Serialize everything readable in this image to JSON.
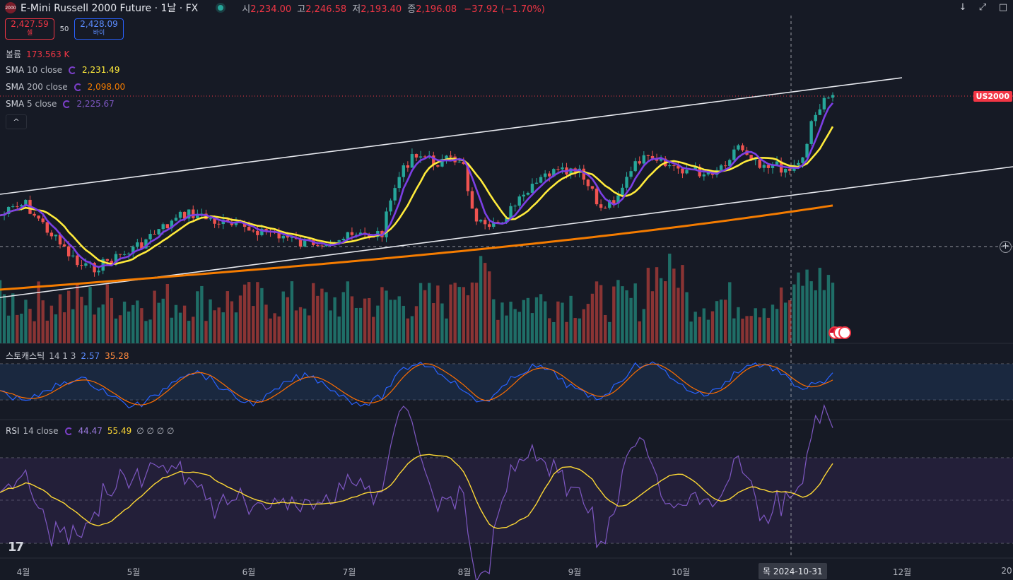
{
  "header": {
    "logo_text": "2000",
    "title": "E-Mini Russell 2000 Future · 1날 · FX",
    "open_label": "시",
    "open": "2,234.00",
    "high_label": "고",
    "high": "2,246.58",
    "low_label": "저",
    "low": "2,193.40",
    "close_label": "종",
    "close": "2,196.08",
    "change": "−37.92 (−1.70%)"
  },
  "trade": {
    "sell_price": "2,427.59",
    "sell_label": "셀",
    "spread": "50",
    "buy_price": "2,428.09",
    "buy_label": "바이"
  },
  "legend": {
    "volume_label": "볼륨",
    "volume_value": "173.563 K",
    "sma10_label": "SMA",
    "sma10_params": "10 close",
    "sma10_value": "2,231.49",
    "sma200_label": "SMA",
    "sma200_params": "200 close",
    "sma200_value": "2,098.00",
    "sma5_label": "SMA",
    "sma5_params": "5 close",
    "sma5_value": "2,225.67",
    "collapse_icon": "^"
  },
  "price_tag": "US2000",
  "stoch_legend": {
    "label": "스토캐스틱",
    "params": "14 1 3",
    "k": "2.57",
    "d": "35.28"
  },
  "rsi_legend": {
    "label": "RSI",
    "params": "14 close",
    "rsi": "44.47",
    "ma": "55.49",
    "extra": "∅ ∅ ∅ ∅"
  },
  "x_labels": [
    "4월",
    "5월",
    "6월",
    "7월",
    "8월",
    "9월",
    "10월",
    "12월",
    "20"
  ],
  "crosshair_date": "목 2024-10-31",
  "colors": {
    "up": "#26a69a",
    "down": "#ef5350",
    "sma5": "#7b3fe4",
    "sma10": "#ffeb3b",
    "sma200": "#f57c00",
    "stoch_k": "#2962ff",
    "stoch_d": "#ff6d00",
    "rsi": "#7e57c2",
    "rsi_ma": "#fdd835"
  },
  "chart_data": {
    "type": "candlestick",
    "instrument": "E-Mini Russell 2000 Future",
    "interval": "1D",
    "x": [
      "4월",
      "5월",
      "6월",
      "7월",
      "8월",
      "9월",
      "10월",
      "12월"
    ],
    "close_key_points": [
      {
        "x": "4월",
        "value": 2090
      },
      {
        "x": "4월",
        "value": 1975
      },
      {
        "x": "5월",
        "value": 2040
      },
      {
        "x": "6월",
        "value": 2060
      },
      {
        "x": "7월",
        "value": 2040
      },
      {
        "x": "7월",
        "value": 2250
      },
      {
        "x": "8월",
        "value": 2070
      },
      {
        "x": "9월",
        "value": 2210
      },
      {
        "x": "9월",
        "value": 2110
      },
      {
        "x": "10월",
        "value": 2220
      },
      {
        "x": "10월",
        "value": 2230
      },
      {
        "x": "12월",
        "value": 2430
      }
    ],
    "last_price": 2427.59,
    "series": [
      {
        "name": "SMA 5 close",
        "last": 2225.67
      },
      {
        "name": "SMA 10 close",
        "last": 2231.49
      },
      {
        "name": "SMA 200 close",
        "last": 2098.0
      }
    ],
    "volume_last": "173.563 K",
    "stochastic": {
      "k": 2.57,
      "d": 35.28,
      "bands": [
        20,
        80
      ]
    },
    "rsi": {
      "rsi": 44.47,
      "ma": 55.49,
      "bands": [
        30,
        50,
        70
      ]
    }
  }
}
